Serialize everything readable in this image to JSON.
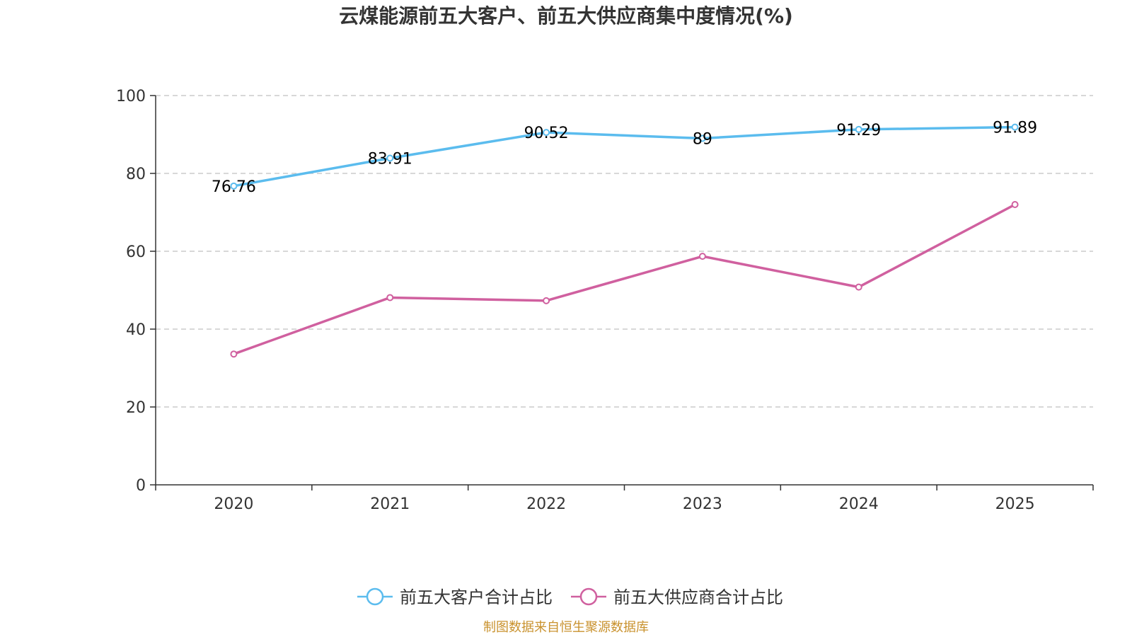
{
  "chart_data": {
    "type": "line",
    "title": "云煤能源前五大客户、前五大供应商集中度情况(%)",
    "categories": [
      "2020",
      "2021",
      "2022",
      "2023",
      "2024",
      "2025"
    ],
    "ylim": [
      0,
      100
    ],
    "yticks": [
      0,
      20,
      40,
      60,
      80,
      100
    ],
    "grid": true,
    "legend_position": "bottom",
    "series": [
      {
        "name": "前五大客户合计占比",
        "color": "#5bbcee",
        "values": [
          76.76,
          83.91,
          90.52,
          89,
          91.29,
          91.89
        ],
        "labels": [
          "76.76",
          "83.91",
          "90.52",
          "89",
          "91.29",
          "91.89"
        ]
      },
      {
        "name": "前五大供应商合计占比",
        "color": "#d0609f",
        "values": [
          33.6,
          48.1,
          47.3,
          58.7,
          50.8,
          72.0
        ],
        "labels": []
      }
    ]
  },
  "source": {
    "text": "制图数据来自恒生聚源数据库",
    "color": "#c9922e"
  }
}
